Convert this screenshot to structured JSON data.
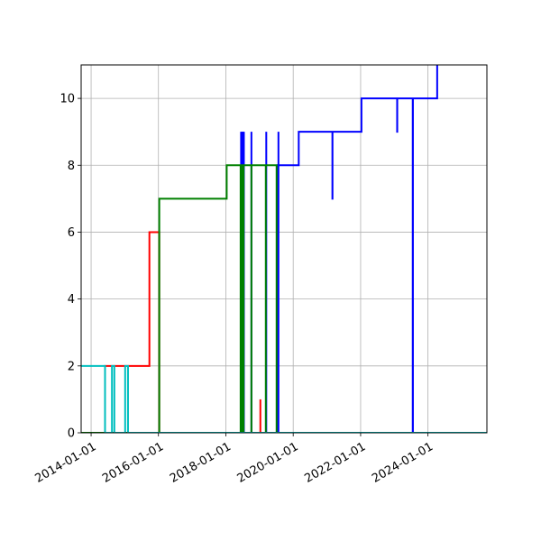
{
  "chart_data": {
    "type": "line",
    "title": "",
    "xlabel": "",
    "ylabel": "",
    "x_axis": "date",
    "xlim": [
      "2013-09-15",
      "2025-10-01"
    ],
    "ylim": [
      0,
      11
    ],
    "xticks": [
      "2014-01-01",
      "2016-01-01",
      "2018-01-01",
      "2020-01-01",
      "2022-01-01",
      "2024-01-01"
    ],
    "yticks": [
      0,
      2,
      4,
      6,
      8,
      10
    ],
    "grid": true,
    "legend": false,
    "series": [
      {
        "color": "#0000ff",
        "points": [
          [
            "2013-09-15",
            0
          ],
          [
            "2019-07-15",
            0
          ],
          [
            "2019-07-15",
            8
          ],
          [
            "2020-03-01",
            8
          ],
          [
            "2020-03-01",
            9
          ],
          [
            "2021-03-01",
            9
          ],
          [
            "2021-03-01",
            7
          ],
          [
            "2021-03-02",
            7
          ],
          [
            "2021-03-02",
            9
          ],
          [
            "2022-01-10",
            9
          ],
          [
            "2022-01-10",
            10
          ],
          [
            "2023-02-01",
            10
          ],
          [
            "2023-02-01",
            9
          ],
          [
            "2023-02-02",
            9
          ],
          [
            "2023-02-02",
            10
          ],
          [
            "2023-07-20",
            10
          ],
          [
            "2023-07-20",
            0
          ],
          [
            "2023-07-22",
            0
          ],
          [
            "2023-07-22",
            10
          ],
          [
            "2024-04-10",
            10
          ],
          [
            "2024-04-10",
            11
          ]
        ],
        "spikes": [
          {
            "date": "2018-06-15",
            "from": 0,
            "to": 9
          },
          {
            "date": "2018-06-25",
            "from": 0,
            "to": 9
          },
          {
            "date": "2018-07-05",
            "from": 0,
            "to": 9
          },
          {
            "date": "2018-07-15",
            "from": 0,
            "to": 9
          },
          {
            "date": "2018-10-05",
            "from": 0,
            "to": 9
          },
          {
            "date": "2019-03-15",
            "from": 0,
            "to": 9
          },
          {
            "date": "2019-07-25",
            "from": 0,
            "to": 9
          }
        ]
      },
      {
        "color": "#ff0000",
        "points": [
          [
            "2013-09-15",
            0
          ],
          [
            "2014-06-01",
            0
          ],
          [
            "2014-06-01",
            2
          ],
          [
            "2015-09-25",
            2
          ],
          [
            "2015-09-25",
            6
          ],
          [
            "2016-01-10",
            6
          ],
          [
            "2016-01-10",
            0
          ],
          [
            "2025-10-01",
            0
          ]
        ],
        "spikes": [
          {
            "date": "2019-01-10",
            "from": 0,
            "to": 1
          }
        ]
      },
      {
        "color": "#008000",
        "points": [
          [
            "2013-09-15",
            0
          ],
          [
            "2016-01-10",
            0
          ],
          [
            "2016-01-10",
            7
          ],
          [
            "2018-01-10",
            7
          ],
          [
            "2018-01-10",
            8
          ],
          [
            "2019-07-05",
            8
          ],
          [
            "2019-07-05",
            0
          ],
          [
            "2025-10-01",
            0
          ]
        ],
        "spikes": [
          {
            "date": "2018-06-10",
            "from": 0,
            "to": 8
          },
          {
            "date": "2018-06-18",
            "from": 0,
            "to": 8
          },
          {
            "date": "2018-06-26",
            "from": 0,
            "to": 8
          },
          {
            "date": "2018-07-04",
            "from": 0,
            "to": 8
          },
          {
            "date": "2018-07-12",
            "from": 0,
            "to": 8
          },
          {
            "date": "2018-10-05",
            "from": 0,
            "to": 8
          },
          {
            "date": "2019-03-10",
            "from": 0,
            "to": 8
          }
        ]
      },
      {
        "color": "#00bfbf",
        "points": [
          [
            "2013-09-15",
            2
          ],
          [
            "2014-06-01",
            2
          ],
          [
            "2014-06-01",
            0
          ],
          [
            "2014-08-15",
            0
          ],
          [
            "2014-08-15",
            2
          ],
          [
            "2014-09-10",
            2
          ],
          [
            "2014-09-10",
            0
          ],
          [
            "2015-01-05",
            0
          ],
          [
            "2015-01-05",
            2
          ],
          [
            "2015-02-05",
            2
          ],
          [
            "2015-02-05",
            0
          ],
          [
            "2025-10-01",
            0
          ]
        ],
        "spikes": []
      }
    ]
  }
}
